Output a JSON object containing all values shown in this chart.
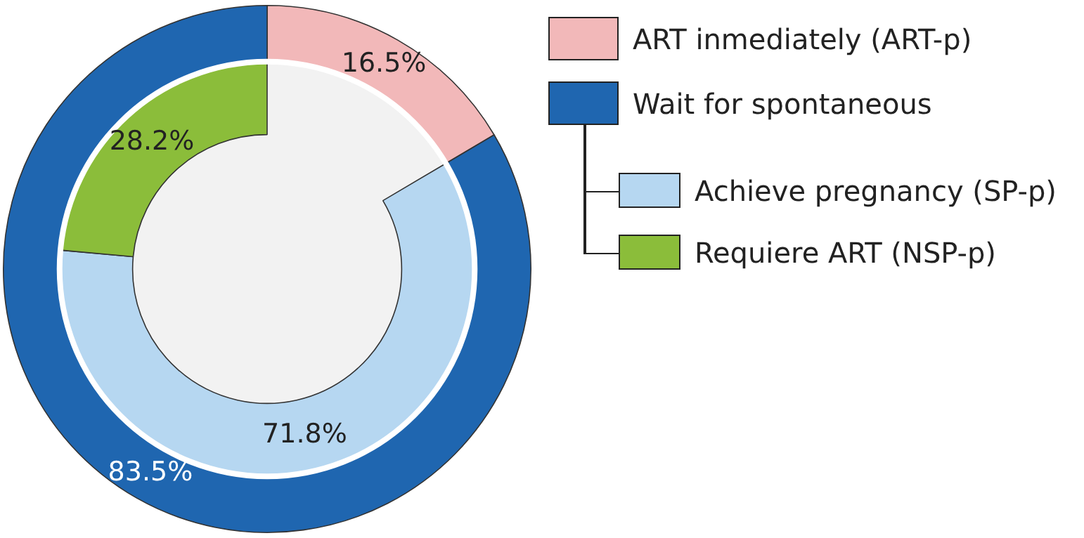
{
  "chart_data": {
    "type": "donut",
    "categories": [
      "ART inmediately (ART-p)",
      "Wait for spontaneous",
      "Achieve pregnancy (SP-p)",
      "Requiere ART (NSP-p)"
    ],
    "colors": [
      "#f2b8b9",
      "#1f66b0",
      "#b6d7f1",
      "#8bbd3a"
    ],
    "series": [
      {
        "values": [
          16.5,
          83.5,
          null,
          null
        ],
        "value_labels": [
          "16.5%",
          "83.5%",
          null,
          null
        ]
      },
      {
        "values": [
          null,
          null,
          71.8,
          28.2
        ],
        "value_labels": [
          null,
          null,
          "71.8%",
          "28.2%"
        ]
      }
    ],
    "legend": "right"
  }
}
